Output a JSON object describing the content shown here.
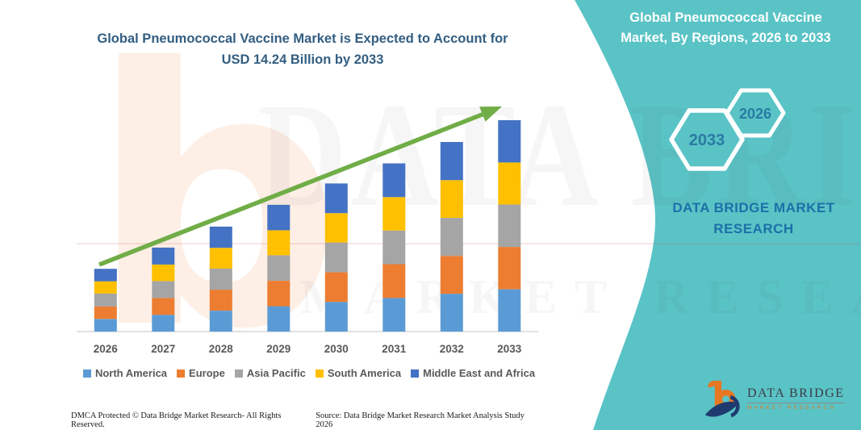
{
  "header": {
    "left_title_line1": "Global Pneumococcal Vaccine Market is Expected to Account for",
    "left_title_line2": "USD 14.24 Billion by 2033"
  },
  "right_panel": {
    "title_line1": "Global Pneumococcal Vaccine",
    "title_line2": "Market, By Regions, 2026 to 2033",
    "hexagon_back_label": "2026",
    "hexagon_front_label": "2033",
    "brand_line1": "DATA BRIDGE MARKET",
    "brand_line2": "RESEARCH"
  },
  "logo": {
    "title": "DATA BRIDGE",
    "subtitle": "MARKET RESEARCH"
  },
  "watermark": {
    "letter": "b",
    "line1": "DATA BRIDGE",
    "line2": "MARKET RESEARCH"
  },
  "footer": {
    "dmca": "DMCA Protected © Data Bridge Market Research-  All Rights Reserved.",
    "source": "Source: Data Bridge Market Research  Market Analysis Study 2026"
  },
  "colors": {
    "teal": "#5AC3C6",
    "title_blue": "#335E82",
    "brand_blue": "#1C70A8",
    "hexagon_text": "#2A7BA3",
    "axis_text": "#595959",
    "arrow_green": "#70AD47",
    "baseline_gray": "#D9D9D9",
    "logo_orange": "#E87722",
    "logo_navy": "#1F3A6E",
    "logo_text": "#3C3C46"
  },
  "chart_data": {
    "type": "bar",
    "stacked": true,
    "title": "Global Pneumococcal Vaccine Market, By Regions, 2026 to 2033",
    "unit": "USD Billion",
    "xlabel": "",
    "ylabel": "",
    "categories": [
      "2026",
      "2027",
      "2028",
      "2029",
      "2030",
      "2031",
      "2032",
      "2033"
    ],
    "series": [
      {
        "name": "North America",
        "color": "#5B9BD5",
        "values": [
          0.85,
          1.13,
          1.41,
          1.71,
          2.0,
          2.27,
          2.55,
          2.85
        ]
      },
      {
        "name": "Europe",
        "color": "#ED7D31",
        "values": [
          0.85,
          1.13,
          1.41,
          1.71,
          2.0,
          2.27,
          2.55,
          2.85
        ]
      },
      {
        "name": "Asia Pacific",
        "color": "#A5A5A5",
        "values": [
          0.86,
          1.14,
          1.42,
          1.72,
          2.0,
          2.27,
          2.56,
          2.86
        ]
      },
      {
        "name": "South America",
        "color": "#FFC000",
        "values": [
          0.83,
          1.12,
          1.4,
          1.69,
          1.98,
          2.25,
          2.54,
          2.83
        ]
      },
      {
        "name": "Middle East and Africa",
        "color": "#4472C4",
        "values": [
          0.84,
          1.14,
          1.43,
          1.71,
          2.0,
          2.27,
          2.57,
          2.85
        ]
      }
    ],
    "totals": [
      4.23,
      5.66,
      7.07,
      8.54,
      9.98,
      11.33,
      12.77,
      14.24
    ],
    "ylim": [
      0,
      15
    ],
    "grid": false,
    "legend_position": "bottom",
    "trend_arrow": true
  }
}
